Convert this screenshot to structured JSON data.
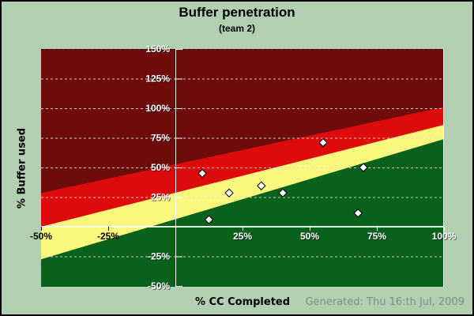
{
  "window": {
    "title": "Buffer penetration"
  },
  "chart_data": {
    "type": "scatter",
    "title": "Buffer penetration",
    "subtitle": "(team 2)",
    "xlabel": "% CC Completed",
    "ylabel": "% Buffer used",
    "xlim": [
      -50,
      100
    ],
    "ylim": [
      -50,
      150
    ],
    "x_ticks": [
      {
        "value": -50,
        "label": "-50%",
        "color": "#000000"
      },
      {
        "value": -25,
        "label": "-25%",
        "color": "#000000"
      },
      {
        "value": 25,
        "label": "25%",
        "color": "#ffffff"
      },
      {
        "value": 50,
        "label": "50%",
        "color": "#ffffff"
      },
      {
        "value": 75,
        "label": "75%",
        "color": "#ffffff"
      },
      {
        "value": 100,
        "label": "100%",
        "color": "#ffffff"
      }
    ],
    "y_ticks": [
      {
        "value": 150,
        "label": "150%"
      },
      {
        "value": 125,
        "label": "125%"
      },
      {
        "value": 100,
        "label": "100%"
      },
      {
        "value": 75,
        "label": "75%"
      },
      {
        "value": 50,
        "label": "50%"
      },
      {
        "value": 25,
        "label": "25%"
      },
      {
        "value": -25,
        "label": "-25%"
      },
      {
        "value": -50,
        "label": "-50%"
      }
    ],
    "zones": [
      {
        "name": "green",
        "color": "#0a611c",
        "top_at_xmin": -27.5,
        "top_at_xmax": 74
      },
      {
        "name": "yellow",
        "color": "#f9f77d",
        "top_at_xmin": 0,
        "top_at_xmax": 86
      },
      {
        "name": "red",
        "color": "#dd0b0b",
        "top_at_xmin": 28.5,
        "top_at_xmax": 101
      },
      {
        "name": "dark-red",
        "color": "#6e0c0c",
        "top_at_xmin": null,
        "top_at_xmax": null
      }
    ],
    "points": [
      {
        "x": 10,
        "y": 45
      },
      {
        "x": 12.5,
        "y": 6
      },
      {
        "x": 20,
        "y": 28.5
      },
      {
        "x": 32,
        "y": 34.5
      },
      {
        "x": 40,
        "y": 28.5
      },
      {
        "x": 55,
        "y": 71
      },
      {
        "x": 68,
        "y": 11.5
      },
      {
        "x": 70,
        "y": 50
      }
    ],
    "marker": {
      "shape": "diamond",
      "fill": "#ffffff",
      "stroke": "#000000",
      "size": 10
    },
    "grid": {
      "horizontal_dashed": [
        125,
        100,
        75,
        50,
        25,
        -25
      ],
      "top_dashed_dark": 150,
      "solid_horizontal": [
        0
      ],
      "solid_vertical": [
        0,
        100
      ],
      "legend": "none"
    }
  },
  "footer": {
    "generated": "Generated: Thu 16:th Jul, 2009"
  },
  "colors": {
    "page_background": "#b3cfb2",
    "border": "#000000",
    "grid_line": "#dcdcdc",
    "axis_line": "#ffffff",
    "label_shadow": "rgba(0,0,0,0.55)",
    "generated_text": "#7d8f7d",
    "title_text": "#000000"
  }
}
